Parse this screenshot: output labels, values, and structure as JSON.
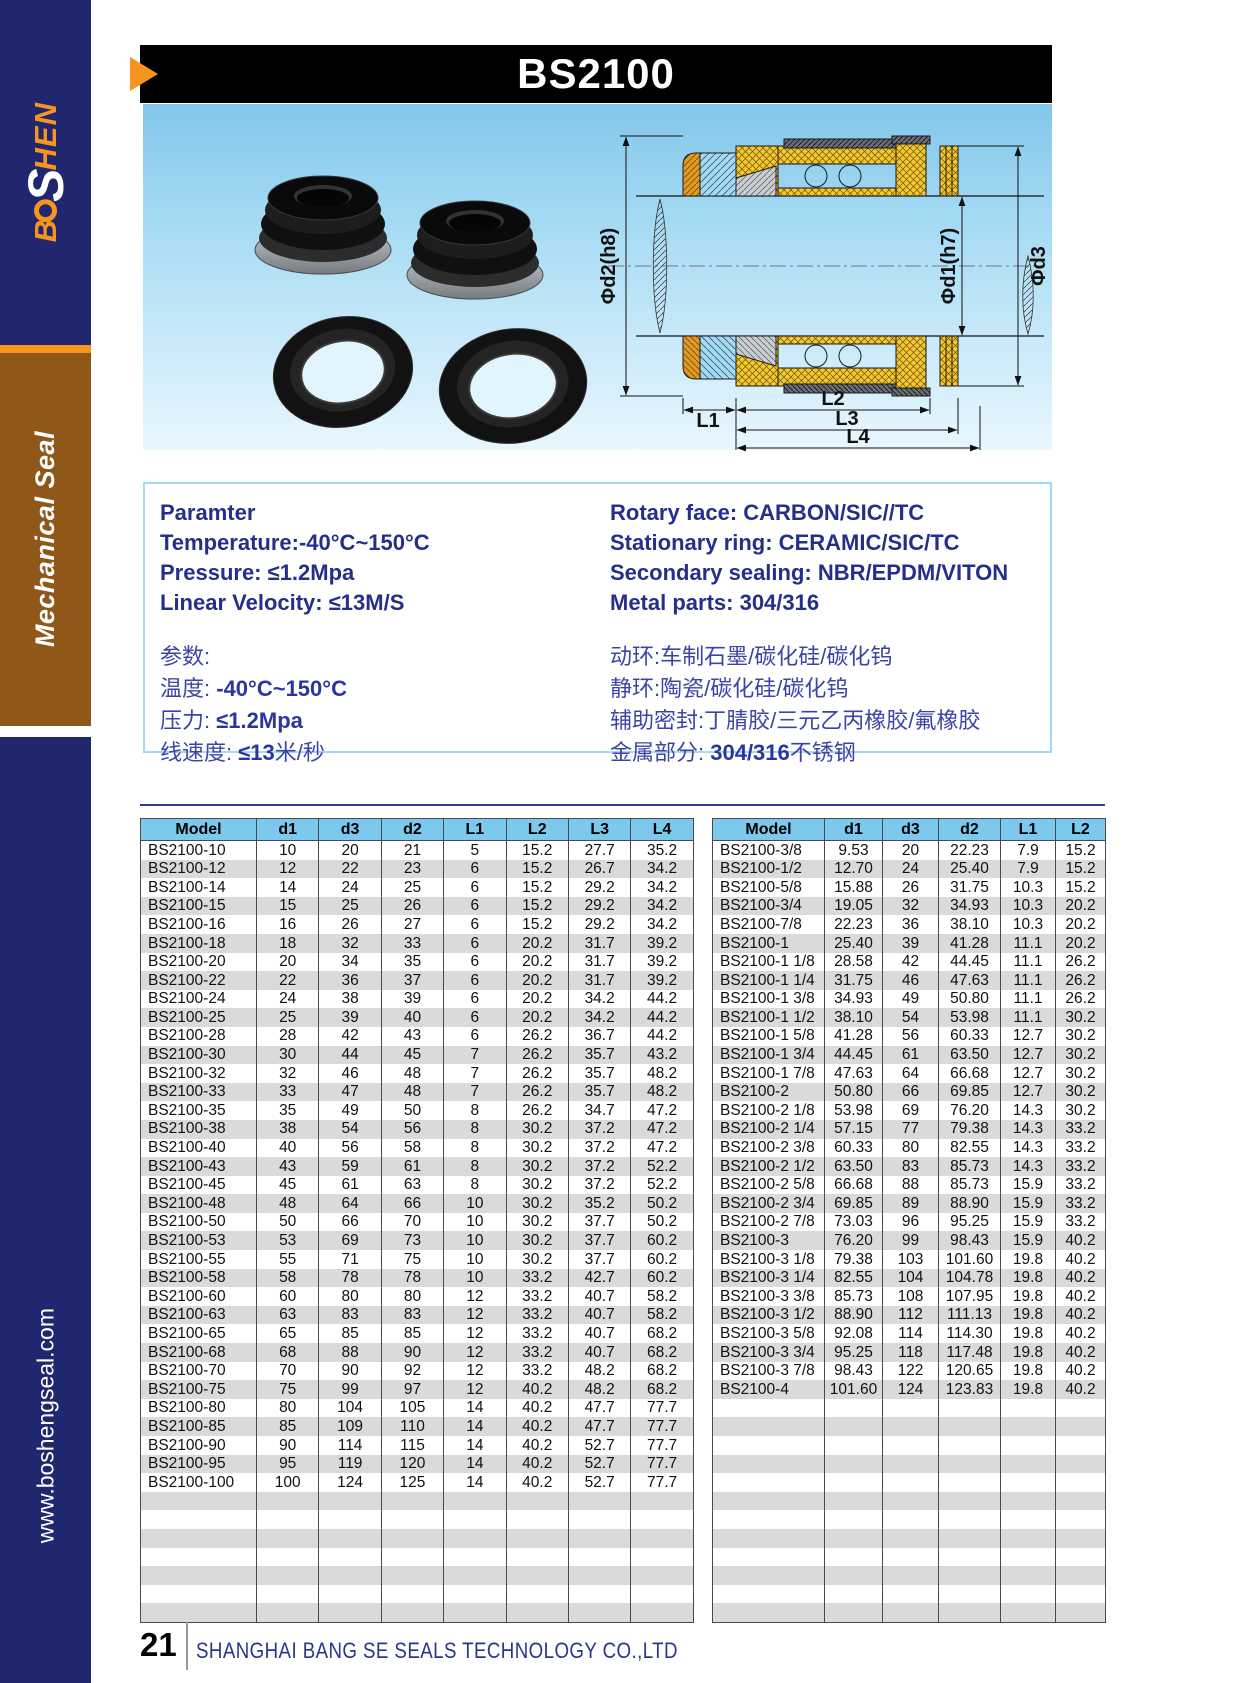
{
  "sidebar": {
    "logo": {
      "part1": "B",
      "part2": "S",
      "part3": "HEN"
    },
    "category": "Mechanical Seal",
    "website": "www.boshengseal.com"
  },
  "header": {
    "title": "BS2100"
  },
  "diagram": {
    "dim_d2": "Φd2(h8)",
    "dim_d1": "Φd1(h7)",
    "dim_d3": "Φd3",
    "dim_l1": "L1",
    "dim_l2": "L2",
    "dim_l3": "L3",
    "dim_l4": "L4"
  },
  "parameters": {
    "left_en": [
      "Paramter",
      "Temperature:-40°C~150°C",
      "Pressure: ≤1.2Mpa",
      "Linear Velocity: ≤13M/S"
    ],
    "left_cn": [
      {
        "label": "参数:",
        "bold": "",
        "rest": ""
      },
      {
        "label": "温度:",
        "bold": "-40°C~150°C",
        "rest": ""
      },
      {
        "label": "压力:",
        "bold": "≤1.2Mpa",
        "rest": ""
      },
      {
        "label": "线速度:",
        "bold": "≤13",
        "rest": "米/秒"
      }
    ],
    "right_en": [
      "Rotary face: CARBON/SIC//TC",
      "Stationary ring: CERAMIC/SIC/TC",
      "Secondary sealing: NBR/EPDM/VITON",
      "Metal parts: 304/316"
    ],
    "right_cn": [
      {
        "label": "动环:",
        "bold": "",
        "rest": "车制石墨/碳化硅/碳化钨"
      },
      {
        "label": "静环:",
        "bold": "",
        "rest": "陶瓷/碳化硅/碳化钨"
      },
      {
        "label": "辅助密封:",
        "bold": "",
        "rest": "丁腈胶/三元乙丙橡胶/氟橡胶"
      },
      {
        "label": "金属部分:",
        "bold": "304/316",
        "rest": "不锈钢"
      }
    ]
  },
  "left_table": {
    "headers": [
      "Model",
      "d1",
      "d3",
      "d2",
      "L1",
      "L2",
      "L3",
      "L4"
    ],
    "rows": [
      [
        "BS2100-10",
        "10",
        "20",
        "21",
        "5",
        "15.2",
        "27.7",
        "35.2"
      ],
      [
        "BS2100-12",
        "12",
        "22",
        "23",
        "6",
        "15.2",
        "26.7",
        "34.2"
      ],
      [
        "BS2100-14",
        "14",
        "24",
        "25",
        "6",
        "15.2",
        "29.2",
        "34.2"
      ],
      [
        "BS2100-15",
        "15",
        "25",
        "26",
        "6",
        "15.2",
        "29.2",
        "34.2"
      ],
      [
        "BS2100-16",
        "16",
        "26",
        "27",
        "6",
        "15.2",
        "29.2",
        "34.2"
      ],
      [
        "BS2100-18",
        "18",
        "32",
        "33",
        "6",
        "20.2",
        "31.7",
        "39.2"
      ],
      [
        "BS2100-20",
        "20",
        "34",
        "35",
        "6",
        "20.2",
        "31.7",
        "39.2"
      ],
      [
        "BS2100-22",
        "22",
        "36",
        "37",
        "6",
        "20.2",
        "31.7",
        "39.2"
      ],
      [
        "BS2100-24",
        "24",
        "38",
        "39",
        "6",
        "20.2",
        "34.2",
        "44.2"
      ],
      [
        "BS2100-25",
        "25",
        "39",
        "40",
        "6",
        "20.2",
        "34.2",
        "44.2"
      ],
      [
        "BS2100-28",
        "28",
        "42",
        "43",
        "6",
        "26.2",
        "36.7",
        "44.2"
      ],
      [
        "BS2100-30",
        "30",
        "44",
        "45",
        "7",
        "26.2",
        "35.7",
        "43.2"
      ],
      [
        "BS2100-32",
        "32",
        "46",
        "48",
        "7",
        "26.2",
        "35.7",
        "48.2"
      ],
      [
        "BS2100-33",
        "33",
        "47",
        "48",
        "7",
        "26.2",
        "35.7",
        "48.2"
      ],
      [
        "BS2100-35",
        "35",
        "49",
        "50",
        "8",
        "26.2",
        "34.7",
        "47.2"
      ],
      [
        "BS2100-38",
        "38",
        "54",
        "56",
        "8",
        "30.2",
        "37.2",
        "47.2"
      ],
      [
        "BS2100-40",
        "40",
        "56",
        "58",
        "8",
        "30.2",
        "37.2",
        "47.2"
      ],
      [
        "BS2100-43",
        "43",
        "59",
        "61",
        "8",
        "30.2",
        "37.2",
        "52.2"
      ],
      [
        "BS2100-45",
        "45",
        "61",
        "63",
        "8",
        "30.2",
        "37.2",
        "52.2"
      ],
      [
        "BS2100-48",
        "48",
        "64",
        "66",
        "10",
        "30.2",
        "35.2",
        "50.2"
      ],
      [
        "BS2100-50",
        "50",
        "66",
        "70",
        "10",
        "30.2",
        "37.7",
        "50.2"
      ],
      [
        "BS2100-53",
        "53",
        "69",
        "73",
        "10",
        "30.2",
        "37.7",
        "60.2"
      ],
      [
        "BS2100-55",
        "55",
        "71",
        "75",
        "10",
        "30.2",
        "37.7",
        "60.2"
      ],
      [
        "BS2100-58",
        "58",
        "78",
        "78",
        "10",
        "33.2",
        "42.7",
        "60.2"
      ],
      [
        "BS2100-60",
        "60",
        "80",
        "80",
        "12",
        "33.2",
        "40.7",
        "58.2"
      ],
      [
        "BS2100-63",
        "63",
        "83",
        "83",
        "12",
        "33.2",
        "40.7",
        "58.2"
      ],
      [
        "BS2100-65",
        "65",
        "85",
        "85",
        "12",
        "33.2",
        "40.7",
        "68.2"
      ],
      [
        "BS2100-68",
        "68",
        "88",
        "90",
        "12",
        "33.2",
        "40.7",
        "68.2"
      ],
      [
        "BS2100-70",
        "70",
        "90",
        "92",
        "12",
        "33.2",
        "48.2",
        "68.2"
      ],
      [
        "BS2100-75",
        "75",
        "99",
        "97",
        "12",
        "40.2",
        "48.2",
        "68.2"
      ],
      [
        "BS2100-80",
        "80",
        "104",
        "105",
        "14",
        "40.2",
        "47.7",
        "77.7"
      ],
      [
        "BS2100-85",
        "85",
        "109",
        "110",
        "14",
        "40.2",
        "47.7",
        "77.7"
      ],
      [
        "BS2100-90",
        "90",
        "114",
        "115",
        "14",
        "40.2",
        "52.7",
        "77.7"
      ],
      [
        "BS2100-95",
        "95",
        "119",
        "120",
        "14",
        "40.2",
        "52.7",
        "77.7"
      ],
      [
        "BS2100-100",
        "100",
        "124",
        "125",
        "14",
        "40.2",
        "52.7",
        "77.7"
      ]
    ],
    "empty_rows": 7
  },
  "right_table": {
    "headers": [
      "Model",
      "d1",
      "d3",
      "d2",
      "L1",
      "L2"
    ],
    "rows": [
      [
        "BS2100-3/8",
        "9.53",
        "20",
        "22.23",
        "7.9",
        "15.2"
      ],
      [
        "BS2100-1/2",
        "12.70",
        "24",
        "25.40",
        "7.9",
        "15.2"
      ],
      [
        "BS2100-5/8",
        "15.88",
        "26",
        "31.75",
        "10.3",
        "15.2"
      ],
      [
        "BS2100-3/4",
        "19.05",
        "32",
        "34.93",
        "10.3",
        "20.2"
      ],
      [
        "BS2100-7/8",
        "22.23",
        "36",
        "38.10",
        "10.3",
        "20.2"
      ],
      [
        "BS2100-1",
        "25.40",
        "39",
        "41.28",
        "11.1",
        "20.2"
      ],
      [
        "BS2100-1 1/8",
        "28.58",
        "42",
        "44.45",
        "11.1",
        "26.2"
      ],
      [
        "BS2100-1 1/4",
        "31.75",
        "46",
        "47.63",
        "11.1",
        "26.2"
      ],
      [
        "BS2100-1 3/8",
        "34.93",
        "49",
        "50.80",
        "11.1",
        "26.2"
      ],
      [
        "BS2100-1 1/2",
        "38.10",
        "54",
        "53.98",
        "11.1",
        "30.2"
      ],
      [
        "BS2100-1 5/8",
        "41.28",
        "56",
        "60.33",
        "12.7",
        "30.2"
      ],
      [
        "BS2100-1 3/4",
        "44.45",
        "61",
        "63.50",
        "12.7",
        "30.2"
      ],
      [
        "BS2100-1 7/8",
        "47.63",
        "64",
        "66.68",
        "12.7",
        "30.2"
      ],
      [
        "BS2100-2",
        "50.80",
        "66",
        "69.85",
        "12.7",
        "30.2"
      ],
      [
        "BS2100-2 1/8",
        "53.98",
        "69",
        "76.20",
        "14.3",
        "30.2"
      ],
      [
        "BS2100-2 1/4",
        "57.15",
        "77",
        "79.38",
        "14.3",
        "33.2"
      ],
      [
        "BS2100-2 3/8",
        "60.33",
        "80",
        "82.55",
        "14.3",
        "33.2"
      ],
      [
        "BS2100-2 1/2",
        "63.50",
        "83",
        "85.73",
        "14.3",
        "33.2"
      ],
      [
        "BS2100-2 5/8",
        "66.68",
        "88",
        "85.73",
        "15.9",
        "33.2"
      ],
      [
        "BS2100-2 3/4",
        "69.85",
        "89",
        "88.90",
        "15.9",
        "33.2"
      ],
      [
        "BS2100-2 7/8",
        "73.03",
        "96",
        "95.25",
        "15.9",
        "33.2"
      ],
      [
        "BS2100-3",
        "76.20",
        "99",
        "98.43",
        "15.9",
        "40.2"
      ],
      [
        "BS2100-3 1/8",
        "79.38",
        "103",
        "101.60",
        "19.8",
        "40.2"
      ],
      [
        "BS2100-3 1/4",
        "82.55",
        "104",
        "104.78",
        "19.8",
        "40.2"
      ],
      [
        "BS2100-3 3/8",
        "85.73",
        "108",
        "107.95",
        "19.8",
        "40.2"
      ],
      [
        "BS2100-3 1/2",
        "88.90",
        "112",
        "111.13",
        "19.8",
        "40.2"
      ],
      [
        "BS2100-3 5/8",
        "92.08",
        "114",
        "114.30",
        "19.8",
        "40.2"
      ],
      [
        "BS2100-3 3/4",
        "95.25",
        "118",
        "117.48",
        "19.8",
        "40.2"
      ],
      [
        "BS2100-3 7/8",
        "98.43",
        "122",
        "120.65",
        "19.8",
        "40.2"
      ],
      [
        "BS2100-4",
        "101.60",
        "124",
        "123.83",
        "19.8",
        "40.2"
      ]
    ],
    "empty_rows": 12
  },
  "footer": {
    "page_number": "21",
    "company": "SHANGHAI BANG SE SEALS TECHNOLOGY CO.,LTD"
  }
}
